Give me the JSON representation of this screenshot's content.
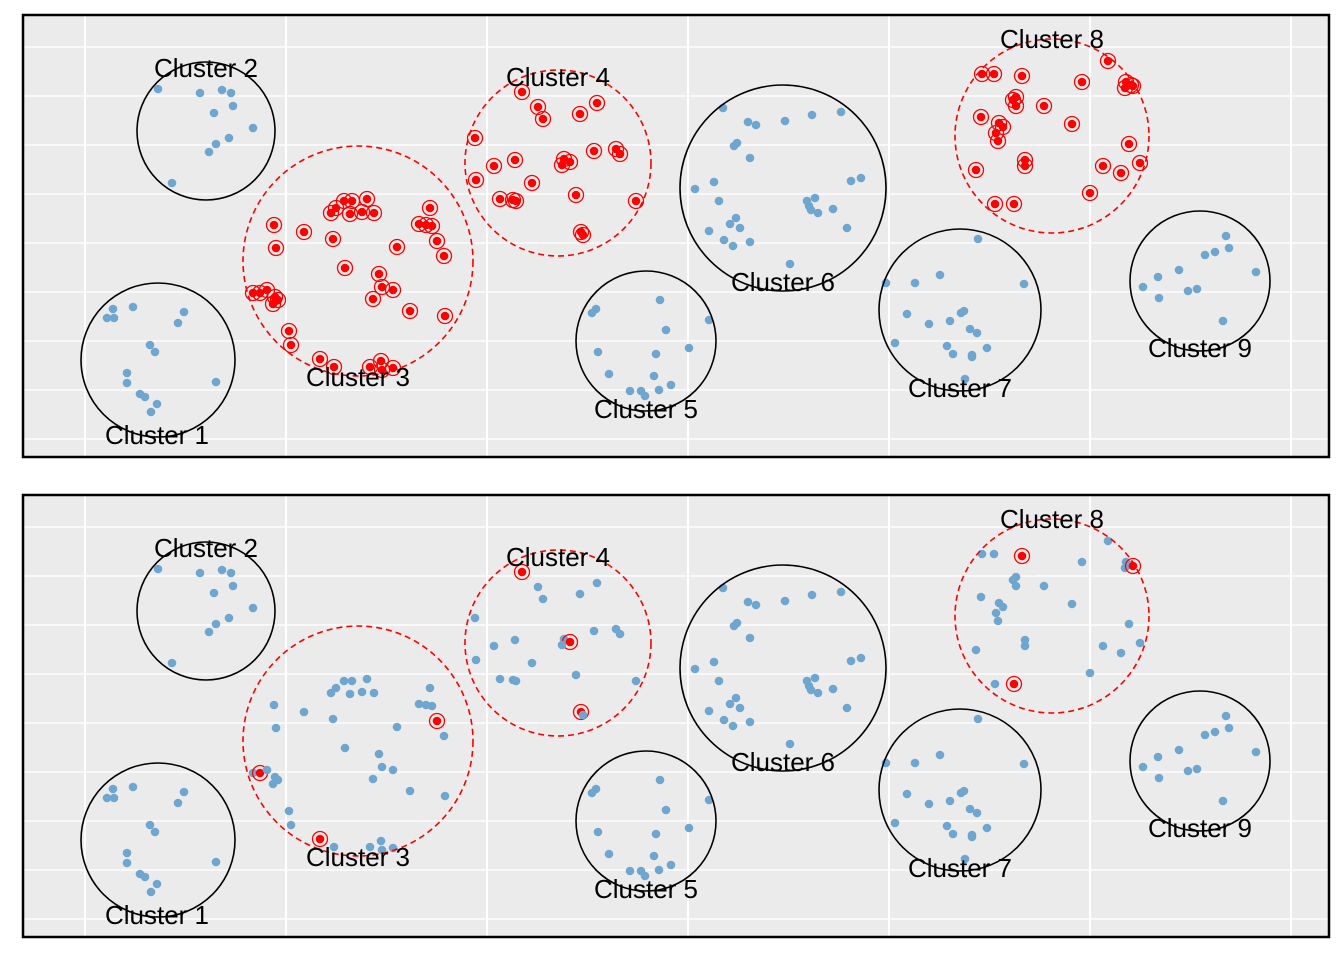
{
  "chart_data": [
    {
      "type": "scatter",
      "panel": "top",
      "xlabel": "",
      "ylabel": "",
      "grid": true,
      "legend": "none",
      "colors": {
        "background": "#EBEBEB",
        "grid": "#FFFFFF",
        "border": "#000000",
        "point": "#6FA6CF",
        "highlight": "#FF0000",
        "circle_default": "#000000"
      },
      "clusters": [
        {
          "label": "Cluster 1",
          "highlighted": false
        },
        {
          "label": "Cluster 2",
          "highlighted": false
        },
        {
          "label": "Cluster 3",
          "highlighted": true
        },
        {
          "label": "Cluster 4",
          "highlighted": true
        },
        {
          "label": "Cluster 5",
          "highlighted": false
        },
        {
          "label": "Cluster 6",
          "highlighted": false
        },
        {
          "label": "Cluster 7",
          "highlighted": false
        },
        {
          "label": "Cluster 8",
          "highlighted": true
        },
        {
          "label": "Cluster 9",
          "highlighted": false
        }
      ],
      "highlighted_points": "all points in Clusters 3, 4 and 8"
    },
    {
      "type": "scatter",
      "panel": "bottom",
      "xlabel": "",
      "ylabel": "",
      "grid": true,
      "legend": "none",
      "colors": {
        "background": "#EBEBEB",
        "grid": "#FFFFFF",
        "border": "#000000",
        "point": "#6FA6CF",
        "highlight": "#FF0000",
        "circle_default": "#000000"
      },
      "clusters": [
        {
          "label": "Cluster 1",
          "highlighted": false
        },
        {
          "label": "Cluster 2",
          "highlighted": false
        },
        {
          "label": "Cluster 3",
          "highlighted": true
        },
        {
          "label": "Cluster 4",
          "highlighted": true
        },
        {
          "label": "Cluster 5",
          "highlighted": false
        },
        {
          "label": "Cluster 6",
          "highlighted": false
        },
        {
          "label": "Cluster 7",
          "highlighted": false
        },
        {
          "label": "Cluster 8",
          "highlighted": true
        },
        {
          "label": "Cluster 9",
          "highlighted": false
        }
      ],
      "highlighted_points": "a sampled subset of points in Clusters 3, 4 and 8"
    }
  ]
}
